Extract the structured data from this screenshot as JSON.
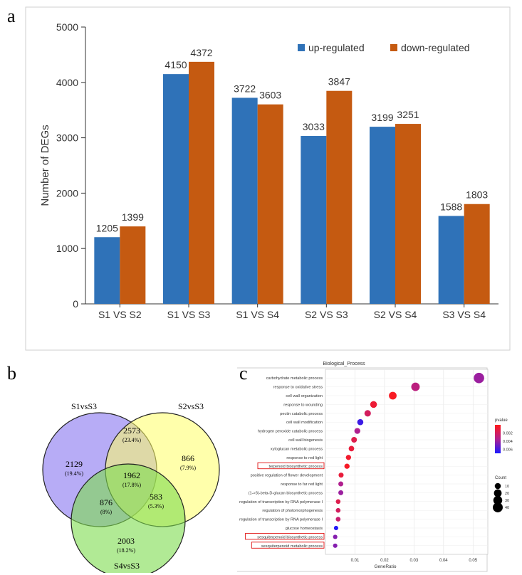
{
  "panels": {
    "a": "a",
    "b": "b",
    "c": "c"
  },
  "colors": {
    "up": "#2f72b8",
    "down": "#c55a11"
  },
  "chart_data": [
    {
      "type": "bar",
      "panel": "a",
      "ylabel": "Number of DEGs",
      "xlabel": "",
      "ylim": [
        0,
        5000
      ],
      "yticks": [
        0,
        1000,
        2000,
        3000,
        4000,
        5000
      ],
      "categories": [
        "S1 VS S2",
        "S1 VS S3",
        "S1 VS S4",
        "S2 VS S3",
        "S2 VS S4",
        "S3 VS S4"
      ],
      "series": [
        {
          "name": "up-regulated",
          "values": [
            1205,
            4150,
            3722,
            3033,
            3199,
            1588
          ]
        },
        {
          "name": "down-regulated",
          "values": [
            1399,
            4372,
            3603,
            3847,
            3251,
            1803
          ]
        }
      ],
      "legend": "top-right"
    },
    {
      "type": "venn",
      "panel": "b",
      "sets": [
        "S1vsS3",
        "S2vsS3",
        "S4vsS3"
      ],
      "regions": [
        {
          "id": "only_s1",
          "count": "2129",
          "pct": "(19.4%)"
        },
        {
          "id": "s1_s2",
          "count": "2573",
          "pct": "(23.4%)"
        },
        {
          "id": "only_s2",
          "count": "866",
          "pct": "(7.9%)"
        },
        {
          "id": "all",
          "count": "1962",
          "pct": "(17.8%)"
        },
        {
          "id": "s1_s4",
          "count": "876",
          "pct": "(8%)"
        },
        {
          "id": "s2_s4",
          "count": "583",
          "pct": "(5.3%)"
        },
        {
          "id": "only_s4",
          "count": "2003",
          "pct": "(18.2%)"
        }
      ],
      "set_colors": [
        "#7b68ee",
        "#ffff66",
        "#7ddc4e"
      ]
    },
    {
      "type": "scatter",
      "panel": "c",
      "title": "Biological_Process",
      "xlabel": "GeneRatio",
      "xlim": [
        0,
        0.055
      ],
      "xticks": [
        "0.01",
        "0.02",
        "0.03",
        "0.04",
        "0.05"
      ],
      "xtick_values": [
        0.01,
        0.02,
        0.03,
        0.04,
        0.05
      ],
      "terms": [
        {
          "term": "carbohydrate metabolic process",
          "ratio": 0.052,
          "count": 45,
          "p": 0.004,
          "highlight": false
        },
        {
          "term": "response to oxidative stress",
          "ratio": 0.0305,
          "count": 26,
          "p": 0.003,
          "highlight": false
        },
        {
          "term": "cell wall organization",
          "ratio": 0.0228,
          "count": 20,
          "p": 0.0003,
          "highlight": false
        },
        {
          "term": "response to wounding",
          "ratio": 0.0163,
          "count": 14,
          "p": 0.0008,
          "highlight": false
        },
        {
          "term": "pectin catabolic process",
          "ratio": 0.0143,
          "count": 12,
          "p": 0.002,
          "highlight": false
        },
        {
          "term": "cell wall modification",
          "ratio": 0.0118,
          "count": 10,
          "p": 0.0062,
          "highlight": false
        },
        {
          "term": "hydrogen peroxide catabolic process",
          "ratio": 0.0108,
          "count": 9,
          "p": 0.0035,
          "highlight": false
        },
        {
          "term": "cell wall biogenesis",
          "ratio": 0.0097,
          "count": 8,
          "p": 0.0015,
          "highlight": false
        },
        {
          "term": "xyloglucan metabolic process",
          "ratio": 0.0088,
          "count": 7,
          "p": 0.001,
          "highlight": false
        },
        {
          "term": "response to red light",
          "ratio": 0.0078,
          "count": 6,
          "p": 0.0006,
          "highlight": false
        },
        {
          "term": "terpenoid biosynthetic process",
          "ratio": 0.0073,
          "count": 6,
          "p": 0.0004,
          "highlight": true
        },
        {
          "term": "positive regulation of flower development",
          "ratio": 0.0053,
          "count": 5,
          "p": 0.001,
          "highlight": false
        },
        {
          "term": "response to far red light",
          "ratio": 0.0052,
          "count": 5,
          "p": 0.0035,
          "highlight": false
        },
        {
          "term": "(1->3)-beta-D-glucan biosynthetic process",
          "ratio": 0.0052,
          "count": 5,
          "p": 0.004,
          "highlight": false
        },
        {
          "term": "regulation of transcription by RNA polymerase I",
          "ratio": 0.0043,
          "count": 4,
          "p": 0.0015,
          "highlight": false
        },
        {
          "term": "regulation of photomorphogenesis",
          "ratio": 0.0043,
          "count": 4,
          "p": 0.002,
          "highlight": false
        },
        {
          "term": "regulation of transcription by RNA polymerase I",
          "ratio": 0.0043,
          "count": 4,
          "p": 0.0025,
          "highlight": false
        },
        {
          "term": "glucose homeostasis",
          "ratio": 0.0036,
          "count": 3,
          "p": 0.0068,
          "highlight": false
        },
        {
          "term": "sesquiterpenoid biosynthetic process",
          "ratio": 0.0033,
          "count": 3,
          "p": 0.0045,
          "highlight": true
        },
        {
          "term": "sesquiterpenoid metabolic process",
          "ratio": 0.0033,
          "count": 3,
          "p": 0.0045,
          "highlight": true
        }
      ],
      "legend_pvalue": {
        "title": "pvalue",
        "ticks": [
          "0.002",
          "0.004",
          "0.006"
        ],
        "tick_values": [
          0.002,
          0.004,
          0.006
        ],
        "range": [
          0,
          0.007
        ]
      },
      "legend_count": {
        "title": "Count",
        "ticks": [
          "10",
          "20",
          "30",
          "40"
        ],
        "tick_values": [
          10,
          20,
          30,
          40
        ]
      }
    }
  ]
}
